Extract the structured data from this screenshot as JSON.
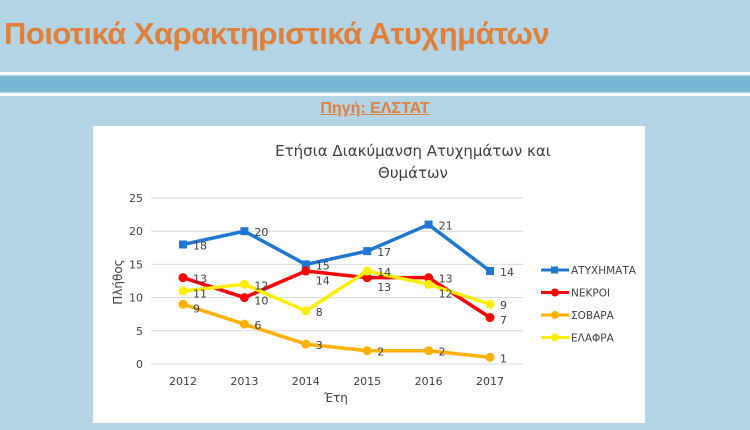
{
  "slide": {
    "title": "Ποιοτικά Χαρακτηριστικά Ατυχημάτων",
    "source": "Πηγή: ΕΛΣΤΑΤ"
  },
  "chart_data": {
    "type": "line",
    "title_lines": [
      "Ετήσια Διακύμανση Ατυχημάτων και",
      "Θυμάτων"
    ],
    "xlabel": "Έτη",
    "ylabel": "Πλήθος",
    "categories": [
      "2012",
      "2013",
      "2014",
      "2015",
      "2016",
      "2017"
    ],
    "ylim": [
      0,
      25
    ],
    "yticks": [
      0,
      5,
      10,
      15,
      20,
      25
    ],
    "grid": true,
    "legend": "right",
    "data_labels": true,
    "series": [
      {
        "name": "ΑΤΥΧΗΜΑΤΑ",
        "values": [
          18,
          20,
          15,
          17,
          21,
          14
        ],
        "color": "#1f77d0",
        "marker": "square"
      },
      {
        "name": "ΝΕΚΡΟΙ",
        "values": [
          13,
          10,
          14,
          13,
          13,
          7
        ],
        "color": "#ff0000",
        "marker": "circle"
      },
      {
        "name": "ΣΟΒΑΡΑ",
        "values": [
          9,
          6,
          3,
          2,
          2,
          1
        ],
        "color": "#ffb000",
        "marker": "circle"
      },
      {
        "name": "ΕΛΑΦΡΑ",
        "values": [
          11,
          12,
          8,
          14,
          12,
          9
        ],
        "color": "#ffee00",
        "marker": "circle"
      }
    ]
  }
}
